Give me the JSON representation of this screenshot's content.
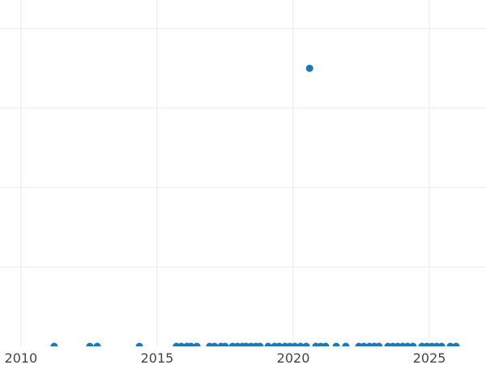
{
  "chart_data": {
    "type": "scatter",
    "title": "",
    "xlabel": "",
    "ylabel": "",
    "xlim": [
      2009.23,
      2027.08
    ],
    "ylim": [
      0,
      4.36
    ],
    "grid": true,
    "x_ticks": [
      2010,
      2015,
      2020,
      2025
    ],
    "x_tick_labels": [
      "2010",
      "2015",
      "2020",
      "2025"
    ],
    "y_gridlines": [
      1,
      2,
      3,
      4
    ],
    "marker_color": "#1f77b4",
    "points": [
      [
        2011.22,
        0
      ],
      [
        2012.53,
        0
      ],
      [
        2012.8,
        0
      ],
      [
        2014.35,
        0
      ],
      [
        2015.71,
        0
      ],
      [
        2015.89,
        0
      ],
      [
        2016.1,
        0
      ],
      [
        2016.25,
        0
      ],
      [
        2016.46,
        0
      ],
      [
        2016.93,
        0
      ],
      [
        2017.11,
        0
      ],
      [
        2017.35,
        0
      ],
      [
        2017.5,
        0
      ],
      [
        2017.77,
        0
      ],
      [
        2017.95,
        0
      ],
      [
        2018.13,
        0
      ],
      [
        2018.27,
        0
      ],
      [
        2018.45,
        0
      ],
      [
        2018.63,
        0
      ],
      [
        2018.78,
        0
      ],
      [
        2019.08,
        0
      ],
      [
        2019.32,
        0
      ],
      [
        2019.49,
        0
      ],
      [
        2019.7,
        0
      ],
      [
        2019.88,
        0
      ],
      [
        2020.06,
        0
      ],
      [
        2020.27,
        0
      ],
      [
        2020.48,
        0
      ],
      [
        2020.6,
        3.5
      ],
      [
        2020.83,
        0
      ],
      [
        2021.01,
        0
      ],
      [
        2021.19,
        0
      ],
      [
        2021.58,
        0
      ],
      [
        2021.93,
        0
      ],
      [
        2022.41,
        0
      ],
      [
        2022.59,
        0
      ],
      [
        2022.8,
        0
      ],
      [
        2022.98,
        0
      ],
      [
        2023.15,
        0
      ],
      [
        2023.48,
        0
      ],
      [
        2023.66,
        0
      ],
      [
        2023.84,
        0
      ],
      [
        2024.02,
        0
      ],
      [
        2024.2,
        0
      ],
      [
        2024.4,
        0
      ],
      [
        2024.73,
        0
      ],
      [
        2024.91,
        0
      ],
      [
        2025.09,
        0
      ],
      [
        2025.27,
        0
      ],
      [
        2025.45,
        0
      ],
      [
        2025.77,
        0
      ],
      [
        2025.98,
        0
      ]
    ]
  }
}
